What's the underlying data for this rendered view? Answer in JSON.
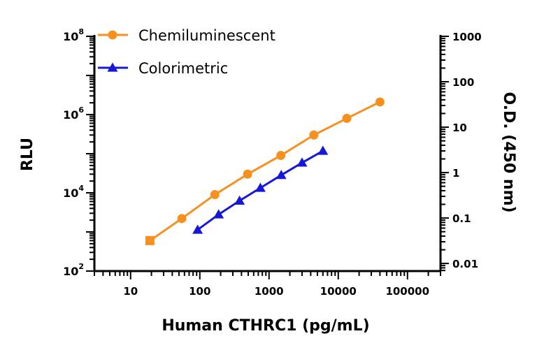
{
  "chart_data": {
    "type": "line",
    "xlabel": "Human CTHRC1 (pg/mL)",
    "ylabel": "RLU",
    "y2label": "O.D. (450 nm)",
    "xscale": "log",
    "yscale": "log",
    "y2scale": "log",
    "xlim": [
      3,
      300000
    ],
    "ylim": [
      100,
      100000000
    ],
    "y2lim": [
      0.0068,
      1000
    ],
    "grid": false,
    "legend_position": "top-left",
    "x_tick_labels": [
      "10",
      "100",
      "1000",
      "10000",
      "100000"
    ],
    "x_tick_values": [
      10,
      100,
      1000,
      10000,
      100000
    ],
    "y_tick_labels": [
      {
        "base": "10",
        "exp": "2",
        "value": 100
      },
      {
        "base": "10",
        "exp": "4",
        "value": 10000
      },
      {
        "base": "10",
        "exp": "6",
        "value": 1000000
      },
      {
        "base": "10",
        "exp": "8",
        "value": 100000000
      }
    ],
    "y2_tick_labels": [
      "0.01",
      "0.1",
      "1",
      "10",
      "100",
      "1000"
    ],
    "y2_tick_values": [
      0.01,
      0.1,
      1,
      10,
      100,
      1000
    ],
    "series": [
      {
        "name": "Chemiluminescent",
        "axis": "left",
        "color": "#f7901e",
        "marker": "circle",
        "x": [
          19,
          55,
          165,
          490,
          1480,
          4440,
          13300,
          40000
        ],
        "y": [
          600,
          2200,
          9000,
          30000,
          90000,
          300000,
          800000,
          2100000
        ]
      },
      {
        "name": "Colorimetric",
        "axis": "right",
        "color": "#1717d9",
        "marker": "triangle",
        "x": [
          93,
          187,
          375,
          750,
          1500,
          3000,
          6000
        ],
        "y": [
          0.055,
          0.12,
          0.24,
          0.46,
          0.88,
          1.65,
          3.0
        ]
      }
    ]
  }
}
